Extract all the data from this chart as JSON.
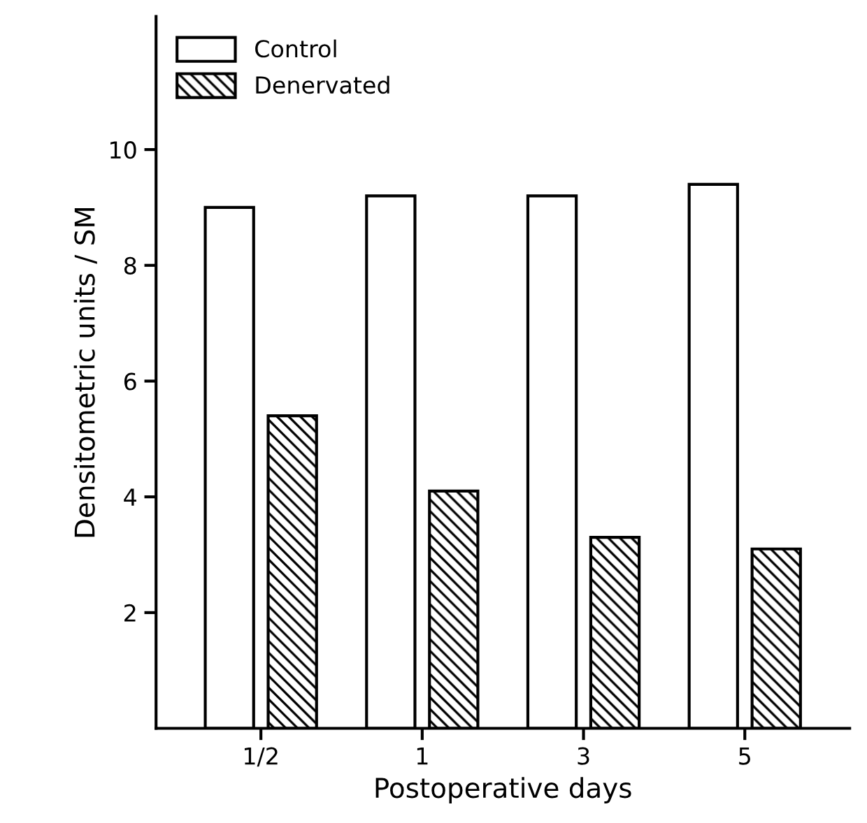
{
  "chart_data": {
    "type": "bar",
    "xlabel": "Postoperative days",
    "ylabel": "Densitometric units / SM",
    "categories": [
      "1/2",
      "1",
      "3",
      "5"
    ],
    "series": [
      {
        "name": "Control",
        "color": "#ffffff",
        "values": [
          9.0,
          9.2,
          9.2,
          9.4
        ]
      },
      {
        "name": "Denervated",
        "color": "#000000",
        "values": [
          5.4,
          4.1,
          3.3,
          3.1
        ]
      }
    ],
    "ylim": [
      0,
      12.3
    ],
    "yticks": [
      2,
      4,
      6,
      8,
      10
    ],
    "grid": false,
    "legend": "top left"
  }
}
